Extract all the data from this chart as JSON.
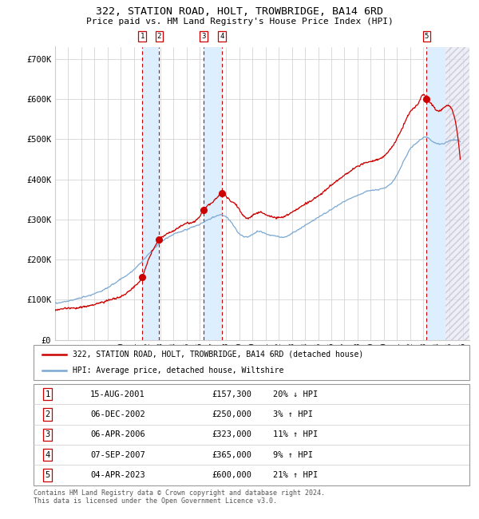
{
  "title": "322, STATION ROAD, HOLT, TROWBRIDGE, BA14 6RD",
  "subtitle": "Price paid vs. HM Land Registry's House Price Index (HPI)",
  "ylim": [
    0,
    730000
  ],
  "yticks": [
    0,
    100000,
    200000,
    300000,
    400000,
    500000,
    600000,
    700000
  ],
  "ytick_labels": [
    "£0",
    "£100K",
    "£200K",
    "£300K",
    "£400K",
    "£500K",
    "£600K",
    "£700K"
  ],
  "xlim_start": 1995.0,
  "xlim_end": 2026.5,
  "sale_dates": [
    2001.62,
    2002.92,
    2006.27,
    2007.68,
    2023.25
  ],
  "sale_prices": [
    157300,
    250000,
    323000,
    365000,
    600000
  ],
  "sale_labels": [
    "1",
    "2",
    "3",
    "4",
    "5"
  ],
  "legend_red_label": "322, STATION ROAD, HOLT, TROWBRIDGE, BA14 6RD (detached house)",
  "legend_blue_label": "HPI: Average price, detached house, Wiltshire",
  "table_entries": [
    {
      "num": "1",
      "date": "15-AUG-2001",
      "price": "£157,300",
      "hpi": "20% ↓ HPI"
    },
    {
      "num": "2",
      "date": "06-DEC-2002",
      "price": "£250,000",
      "hpi": "3% ↑ HPI"
    },
    {
      "num": "3",
      "date": "06-APR-2006",
      "price": "£323,000",
      "hpi": "11% ↑ HPI"
    },
    {
      "num": "4",
      "date": "07-SEP-2007",
      "price": "£365,000",
      "hpi": "9% ↑ HPI"
    },
    {
      "num": "5",
      "date": "04-APR-2023",
      "price": "£600,000",
      "hpi": "21% ↑ HPI"
    }
  ],
  "footer": "Contains HM Land Registry data © Crown copyright and database right 2024.\nThis data is licensed under the Open Government Licence v3.0.",
  "red_color": "#cc0000",
  "blue_color": "#7aa8d2",
  "shade_color": "#ddeeff",
  "grid_color": "#cccccc",
  "title_fontsize": 9.5,
  "subtitle_fontsize": 8,
  "axis_fontsize": 7.5,
  "legend_fontsize": 7,
  "table_fontsize": 7.5
}
